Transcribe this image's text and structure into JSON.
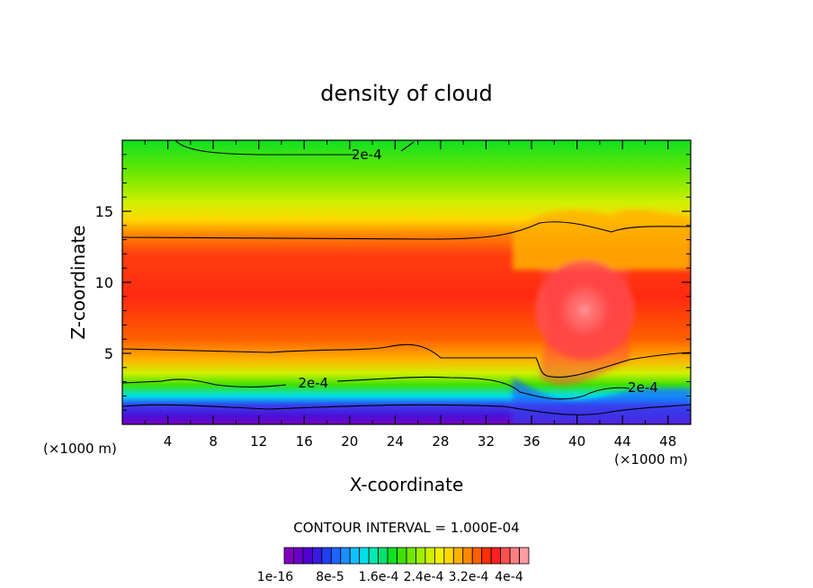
{
  "chart_data": {
    "type": "heatmap",
    "title": "density of cloud",
    "xlabel": "X-coordinate",
    "ylabel": "Z-coordinate",
    "x_unit_label_left": "(×1000 m)",
    "x_unit_label_right": "(×1000 m)",
    "xlim": [
      0,
      50
    ],
    "ylim": [
      0,
      20
    ],
    "x_ticks": [
      4,
      8,
      12,
      16,
      20,
      24,
      28,
      32,
      36,
      40,
      44,
      48
    ],
    "y_ticks": [
      5,
      10,
      15
    ],
    "contour_interval_text": "CONTOUR INTERVAL = 1.000E-04",
    "contour_labels": [
      {
        "text": "2e-4",
        "x": 21.5,
        "y": 19.0
      },
      {
        "text": "2e-4",
        "x": 16.8,
        "y": 2.9
      },
      {
        "text": "2e-4",
        "x": 45.8,
        "y": 2.6
      }
    ],
    "colorbar": {
      "tick_labels": [
        "1e-16",
        "8e-5",
        "1.6e-4",
        "2.4e-4",
        "3.2e-4",
        "4e-4"
      ],
      "colors": [
        "#8000c0",
        "#6a00c8",
        "#5000d0",
        "#3a1ae0",
        "#2040f0",
        "#1e64ff",
        "#1a90ff",
        "#10c0ff",
        "#00e0e8",
        "#00e8b0",
        "#00e070",
        "#10e020",
        "#40e000",
        "#70e800",
        "#a0f000",
        "#d0f000",
        "#f0f000",
        "#ffd800",
        "#ffb000",
        "#ff8800",
        "#ff6000",
        "#ff3000",
        "#ff2020",
        "#ff5050",
        "#ff8080",
        "#ff9ca0"
      ]
    }
  }
}
